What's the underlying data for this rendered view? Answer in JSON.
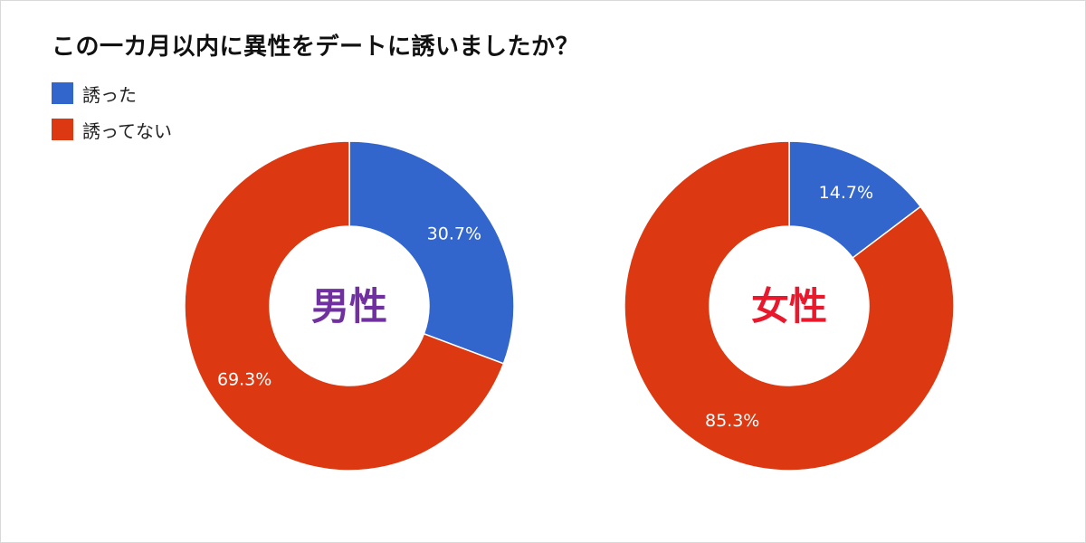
{
  "page": {
    "title": "この一カ月以内に異性をデートに誘いましたか？"
  },
  "colors": {
    "invited": "#3366cc",
    "not_invited": "#dc3912",
    "male_label": "#7030a0",
    "female_label": "#e8192c",
    "slice_text": "#ffffff"
  },
  "legend": {
    "items": [
      {
        "label": "誘った",
        "color_key": "invited"
      },
      {
        "label": "誘ってない",
        "color_key": "not_invited"
      }
    ]
  },
  "chart_data": [
    {
      "type": "pie",
      "donut": true,
      "center_label": "男性",
      "center_label_color_key": "male_label",
      "slices": [
        {
          "name": "誘った",
          "value": 30.7,
          "label": "30.7%",
          "color_key": "invited"
        },
        {
          "name": "誘ってない",
          "value": 69.3,
          "label": "69.3%",
          "color_key": "not_invited"
        }
      ]
    },
    {
      "type": "pie",
      "donut": true,
      "center_label": "女性",
      "center_label_color_key": "female_label",
      "slices": [
        {
          "name": "誘った",
          "value": 14.7,
          "label": "14.7%",
          "color_key": "invited"
        },
        {
          "name": "誘ってない",
          "value": 85.3,
          "label": "85.3%",
          "color_key": "not_invited"
        }
      ]
    }
  ]
}
